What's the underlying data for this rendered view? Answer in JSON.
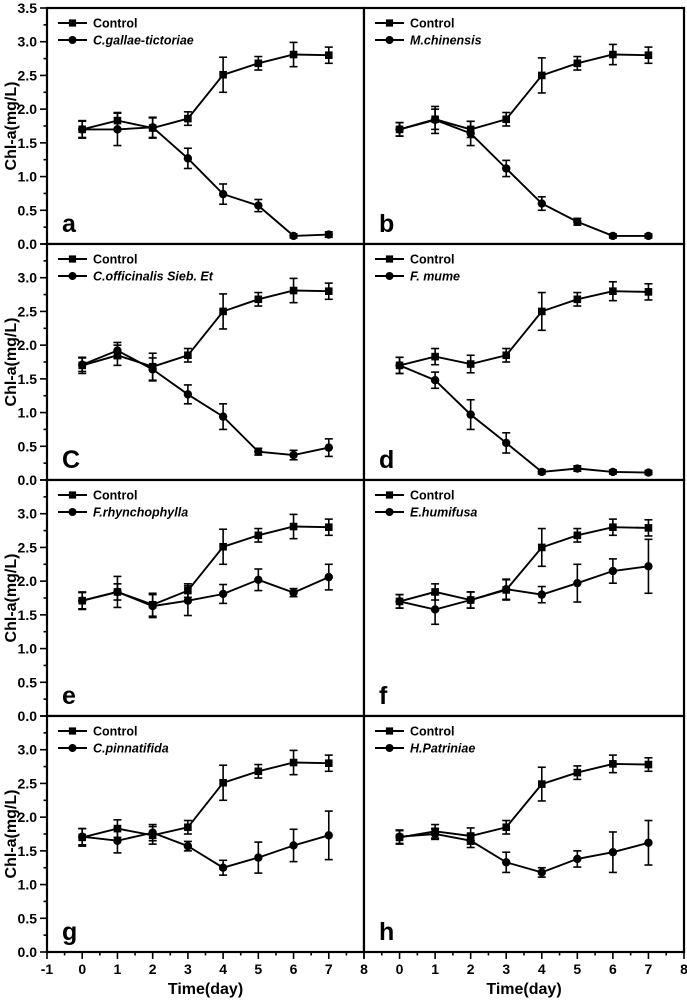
{
  "figure": {
    "background": "#ffffff",
    "foreground": "#000000"
  },
  "chart_data": {
    "type": "line",
    "layout": "4x2 panel grid",
    "x": [
      0,
      1,
      2,
      3,
      4,
      5,
      6,
      7
    ],
    "xlabel": "Time(day)",
    "ylabel": "Chl-a(mg/L)",
    "xlim": [
      -1,
      8
    ],
    "ylim": [
      0,
      3.5
    ],
    "x_major_tick": 1,
    "x_minor_tick": 0.5,
    "y_major_tick": 0.5,
    "y_minor_tick": 0.25,
    "ytick_labels": [
      "0.0",
      "0.5",
      "1.0",
      "1.5",
      "2.0",
      "2.5",
      "3.0",
      "3.5"
    ],
    "xtick_labels": [
      "-1",
      "0",
      "1",
      "2",
      "3",
      "4",
      "5",
      "6",
      "7",
      "8"
    ],
    "grid": false,
    "legend_position": "top-left-inside",
    "error_bars": true,
    "panels": [
      {
        "letter": "a",
        "series": [
          {
            "name": "Control",
            "marker": "square",
            "italic": false,
            "values": [
              1.7,
              1.83,
              1.72,
              1.86,
              2.51,
              2.68,
              2.81,
              2.8
            ],
            "errors": [
              0.13,
              0.12,
              0.15,
              0.1,
              0.26,
              0.1,
              0.18,
              0.12
            ]
          },
          {
            "name": "C.gallae-tictoriae",
            "marker": "circle",
            "italic": true,
            "values": [
              1.7,
              1.7,
              1.73,
              1.27,
              0.74,
              0.57,
              0.12,
              0.14
            ],
            "errors": [
              0.12,
              0.24,
              0.15,
              0.15,
              0.15,
              0.09,
              0.03,
              0.04
            ]
          }
        ]
      },
      {
        "letter": "b",
        "series": [
          {
            "name": "Control",
            "marker": "square",
            "italic": false,
            "values": [
              1.7,
              1.85,
              1.7,
              1.85,
              2.5,
              2.68,
              2.81,
              2.8
            ],
            "errors": [
              0.1,
              0.15,
              0.12,
              0.1,
              0.26,
              0.1,
              0.15,
              0.12
            ]
          },
          {
            "name": "M.chinensis",
            "marker": "circle",
            "italic": true,
            "values": [
              1.7,
              1.84,
              1.64,
              1.12,
              0.6,
              0.33,
              0.12,
              0.12
            ],
            "errors": [
              0.1,
              0.2,
              0.18,
              0.12,
              0.1,
              0.05,
              0.03,
              0.03
            ]
          }
        ]
      },
      {
        "letter": "C",
        "series": [
          {
            "name": "Control",
            "marker": "square",
            "italic": false,
            "values": [
              1.7,
              1.85,
              1.68,
              1.85,
              2.5,
              2.68,
              2.81,
              2.8
            ],
            "errors": [
              0.12,
              0.15,
              0.2,
              0.1,
              0.26,
              0.1,
              0.18,
              0.12
            ]
          },
          {
            "name": "C.officinalis Sieb. Et",
            "marker": "circle",
            "italic": true,
            "values": [
              1.71,
              1.92,
              1.64,
              1.27,
              0.94,
              0.42,
              0.37,
              0.48
            ],
            "errors": [
              0.1,
              0.12,
              0.17,
              0.14,
              0.19,
              0.05,
              0.07,
              0.13
            ]
          }
        ]
      },
      {
        "letter": "d",
        "series": [
          {
            "name": "Control",
            "marker": "square",
            "italic": false,
            "values": [
              1.7,
              1.83,
              1.72,
              1.85,
              2.5,
              2.68,
              2.8,
              2.79
            ],
            "errors": [
              0.12,
              0.12,
              0.13,
              0.1,
              0.28,
              0.1,
              0.14,
              0.12
            ]
          },
          {
            "name": "F. mume",
            "marker": "circle",
            "italic": true,
            "values": [
              1.7,
              1.48,
              0.97,
              0.55,
              0.12,
              0.17,
              0.12,
              0.11
            ],
            "errors": [
              0.12,
              0.12,
              0.22,
              0.15,
              0.03,
              0.04,
              0.03,
              0.03
            ]
          }
        ]
      },
      {
        "letter": "e",
        "series": [
          {
            "name": "Control",
            "marker": "square",
            "italic": false,
            "values": [
              1.71,
              1.84,
              1.65,
              1.86,
              2.51,
              2.68,
              2.81,
              2.8
            ],
            "errors": [
              0.13,
              0.12,
              0.17,
              0.1,
              0.26,
              0.1,
              0.18,
              0.12
            ]
          },
          {
            "name": "F.rhynchophylla",
            "marker": "circle",
            "italic": true,
            "values": [
              1.71,
              1.84,
              1.63,
              1.71,
              1.81,
              2.02,
              1.83,
              2.06
            ],
            "errors": [
              0.12,
              0.23,
              0.17,
              0.22,
              0.14,
              0.16,
              0.06,
              0.19
            ]
          }
        ]
      },
      {
        "letter": "f",
        "series": [
          {
            "name": "Control",
            "marker": "square",
            "italic": false,
            "values": [
              1.7,
              1.84,
              1.72,
              1.87,
              2.5,
              2.68,
              2.8,
              2.79
            ],
            "errors": [
              0.1,
              0.12,
              0.12,
              0.15,
              0.28,
              0.1,
              0.12,
              0.12
            ]
          },
          {
            "name": "E.humifusa",
            "marker": "circle",
            "italic": true,
            "values": [
              1.7,
              1.58,
              1.72,
              1.88,
              1.8,
              1.97,
              2.15,
              2.22
            ],
            "errors": [
              0.1,
              0.22,
              0.12,
              0.15,
              0.12,
              0.28,
              0.18,
              0.4
            ]
          }
        ]
      },
      {
        "letter": "g",
        "series": [
          {
            "name": "Control",
            "marker": "square",
            "italic": false,
            "values": [
              1.7,
              1.83,
              1.73,
              1.85,
              2.51,
              2.68,
              2.81,
              2.8
            ],
            "errors": [
              0.13,
              0.13,
              0.13,
              0.1,
              0.26,
              0.1,
              0.18,
              0.12
            ]
          },
          {
            "name": "C.pinnatifida",
            "marker": "circle",
            "italic": true,
            "values": [
              1.71,
              1.65,
              1.77,
              1.57,
              1.25,
              1.4,
              1.58,
              1.73
            ],
            "errors": [
              0.12,
              0.18,
              0.12,
              0.07,
              0.11,
              0.23,
              0.24,
              0.36
            ]
          }
        ]
      },
      {
        "letter": "h",
        "series": [
          {
            "name": "Control",
            "marker": "square",
            "italic": false,
            "values": [
              1.7,
              1.79,
              1.72,
              1.85,
              2.49,
              2.66,
              2.79,
              2.78
            ],
            "errors": [
              0.1,
              0.1,
              0.12,
              0.1,
              0.25,
              0.1,
              0.13,
              0.1
            ]
          },
          {
            "name": "H.Patriniae",
            "marker": "circle",
            "italic": true,
            "values": [
              1.71,
              1.75,
              1.65,
              1.33,
              1.18,
              1.38,
              1.48,
              1.62
            ],
            "errors": [
              0.1,
              0.08,
              0.1,
              0.15,
              0.07,
              0.12,
              0.3,
              0.33
            ]
          }
        ]
      }
    ]
  }
}
